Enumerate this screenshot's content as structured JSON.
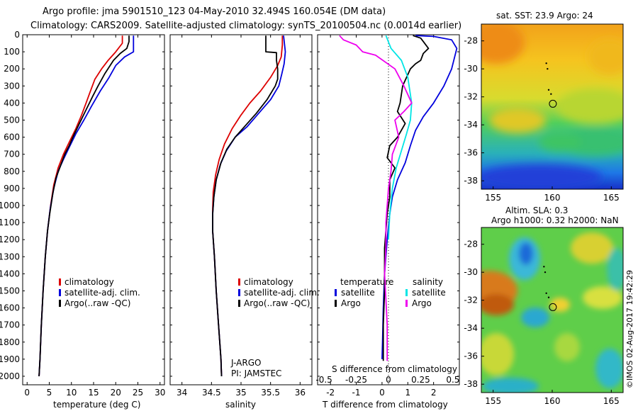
{
  "header": {
    "line1": "Argo profile: jma 5901510_123 04-May-2010 32.494S 160.054E (DM data)",
    "line2": "Climatology: CARS2009. Satellite-adjusted climatology: synTS_20100504.nc (0.0014d earlier)"
  },
  "credit": "©IMOS 02-Aug-2017 19:42:29",
  "colors": {
    "climatology": "#dd0000",
    "satellite": "#0000dd",
    "argo": "#000000",
    "cyan": "#00e5e5",
    "magenta": "#ee00ee"
  },
  "chart_data": [
    {
      "type": "line",
      "xlabel": "temperature (deg C)",
      "xlim": [
        -1,
        31
      ],
      "ylim": [
        0,
        2050
      ],
      "xticks": [
        0,
        5,
        10,
        15,
        20,
        25,
        30
      ],
      "yticks": [
        0,
        100,
        200,
        300,
        400,
        500,
        600,
        700,
        800,
        900,
        1000,
        1100,
        1200,
        1300,
        1400,
        1500,
        1600,
        1700,
        1800,
        1900,
        2000
      ],
      "legend": [
        "climatology",
        "satellite-adj. clim.",
        "Argo(..raw -QC)"
      ],
      "series": [
        {
          "name": "climatology",
          "color": "#dd0000",
          "points": [
            [
              21.5,
              5
            ],
            [
              21.5,
              50
            ],
            [
              20.0,
              100
            ],
            [
              18.3,
              150
            ],
            [
              16.8,
              200
            ],
            [
              15.3,
              260
            ],
            [
              14.3,
              330
            ],
            [
              13.3,
              400
            ],
            [
              12.3,
              470
            ],
            [
              11.0,
              550
            ],
            [
              9.5,
              630
            ],
            [
              8.2,
              700
            ],
            [
              7.0,
              780
            ],
            [
              6.0,
              880
            ],
            [
              5.3,
              1000
            ],
            [
              4.6,
              1150
            ],
            [
              4.1,
              1300
            ],
            [
              3.6,
              1500
            ],
            [
              3.2,
              1700
            ],
            [
              2.9,
              1900
            ],
            [
              2.7,
              2000
            ]
          ]
        },
        {
          "name": "satellite-adj. clim.",
          "color": "#0000dd",
          "points": [
            [
              24.0,
              5
            ],
            [
              24.0,
              100
            ],
            [
              22.0,
              130
            ],
            [
              20.0,
              180
            ],
            [
              18.5,
              250
            ],
            [
              16.5,
              330
            ],
            [
              14.5,
              420
            ],
            [
              12.8,
              500
            ],
            [
              11.0,
              580
            ],
            [
              9.5,
              660
            ],
            [
              8.2,
              730
            ],
            [
              7.0,
              800
            ],
            [
              6.0,
              900
            ],
            [
              5.2,
              1020
            ],
            [
              4.6,
              1150
            ],
            [
              4.1,
              1300
            ],
            [
              3.6,
              1500
            ],
            [
              3.2,
              1700
            ],
            [
              2.9,
              1900
            ],
            [
              2.7,
              2000
            ]
          ]
        },
        {
          "name": "Argo(..raw -QC)",
          "color": "#000000",
          "points": [
            [
              23.0,
              5
            ],
            [
              23.0,
              40
            ],
            [
              22.5,
              80
            ],
            [
              21.0,
              110
            ],
            [
              19.5,
              150
            ],
            [
              17.5,
              230
            ],
            [
              16.0,
              300
            ],
            [
              14.8,
              360
            ],
            [
              13.3,
              440
            ],
            [
              11.8,
              520
            ],
            [
              10.5,
              590
            ],
            [
              9.5,
              650
            ],
            [
              8.5,
              700
            ],
            [
              7.5,
              770
            ],
            [
              6.5,
              840
            ],
            [
              5.8,
              930
            ],
            [
              5.1,
              1050
            ],
            [
              4.6,
              1150
            ],
            [
              4.1,
              1300
            ],
            [
              3.6,
              1500
            ],
            [
              3.2,
              1700
            ],
            [
              2.9,
              1900
            ],
            [
              2.7,
              2000
            ]
          ]
        }
      ]
    },
    {
      "type": "line",
      "xlabel": "salinity",
      "xlim": [
        33.8,
        36.2
      ],
      "ylim": [
        0,
        2050
      ],
      "xticks": [
        34,
        34.5,
        35,
        35.5,
        36
      ],
      "legend": [
        "climatology",
        "satellite-adj. clim.",
        "Argo(..raw -QC)"
      ],
      "annotation": [
        "J-ARGO",
        "PI: JAMSTEC"
      ],
      "series": [
        {
          "name": "climatology",
          "color": "#dd0000",
          "points": [
            [
              35.7,
              5
            ],
            [
              35.7,
              60
            ],
            [
              35.68,
              130
            ],
            [
              35.62,
              180
            ],
            [
              35.5,
              250
            ],
            [
              35.33,
              330
            ],
            [
              35.15,
              400
            ],
            [
              35.0,
              470
            ],
            [
              34.85,
              550
            ],
            [
              34.72,
              640
            ],
            [
              34.63,
              730
            ],
            [
              34.57,
              820
            ],
            [
              34.53,
              920
            ],
            [
              34.52,
              1020
            ],
            [
              34.52,
              1150
            ],
            [
              34.55,
              1300
            ],
            [
              34.58,
              1500
            ],
            [
              34.62,
              1700
            ],
            [
              34.66,
              1900
            ],
            [
              34.67,
              2000
            ]
          ]
        },
        {
          "name": "satellite-adj. clim.",
          "color": "#0000dd",
          "points": [
            [
              35.72,
              5
            ],
            [
              35.75,
              100
            ],
            [
              35.73,
              170
            ],
            [
              35.69,
              230
            ],
            [
              35.64,
              300
            ],
            [
              35.5,
              380
            ],
            [
              35.3,
              460
            ],
            [
              35.1,
              540
            ],
            [
              34.9,
              600
            ],
            [
              34.75,
              680
            ],
            [
              34.65,
              760
            ],
            [
              34.58,
              850
            ],
            [
              34.54,
              950
            ],
            [
              34.52,
              1050
            ],
            [
              34.52,
              1150
            ],
            [
              34.55,
              1300
            ],
            [
              34.58,
              1500
            ],
            [
              34.62,
              1700
            ],
            [
              34.66,
              1900
            ],
            [
              34.67,
              2000
            ]
          ]
        },
        {
          "name": "Argo(..raw -QC)",
          "color": "#000000",
          "points": [
            [
              35.42,
              5
            ],
            [
              35.42,
              100
            ],
            [
              35.6,
              105
            ],
            [
              35.6,
              150
            ],
            [
              35.62,
              200
            ],
            [
              35.62,
              260
            ],
            [
              35.58,
              300
            ],
            [
              35.44,
              380
            ],
            [
              35.26,
              460
            ],
            [
              35.08,
              530
            ],
            [
              34.9,
              600
            ],
            [
              34.76,
              670
            ],
            [
              34.66,
              750
            ],
            [
              34.58,
              850
            ],
            [
              34.54,
              950
            ],
            [
              34.52,
              1050
            ],
            [
              34.52,
              1150
            ],
            [
              34.55,
              1300
            ],
            [
              34.58,
              1500
            ],
            [
              34.62,
              1700
            ],
            [
              34.66,
              1900
            ],
            [
              34.67,
              2000
            ]
          ]
        }
      ]
    },
    {
      "type": "line",
      "xlabel": "T difference from climatology",
      "xlabel2": "S difference from climatology",
      "xlim": [
        -2.5,
        3.0
      ],
      "ylim": [
        0,
        2050
      ],
      "xticks": [
        -2,
        -1,
        0,
        1,
        2
      ],
      "xticks2": [
        "-0.5",
        "-0.25",
        "0",
        "0.25",
        "0.5"
      ],
      "legend_temperature": [
        "temperature",
        "satellite",
        "Argo"
      ],
      "legend_salinity": [
        "salinity",
        "satellite",
        "Argo"
      ],
      "series": [
        {
          "name": "temperature satellite",
          "color": "#0000dd",
          "points": [
            [
              1.3,
              5
            ],
            [
              2.0,
              10
            ],
            [
              2.7,
              30
            ],
            [
              2.9,
              80
            ],
            [
              2.7,
              200
            ],
            [
              2.4,
              300
            ],
            [
              2.0,
              400
            ],
            [
              1.6,
              480
            ],
            [
              1.3,
              560
            ],
            [
              1.1,
              650
            ],
            [
              0.9,
              750
            ],
            [
              0.6,
              850
            ],
            [
              0.4,
              950
            ],
            [
              0.3,
              1050
            ],
            [
              0.2,
              1200
            ],
            [
              0.1,
              1400
            ],
            [
              0.05,
              1600
            ],
            [
              0.02,
              1800
            ],
            [
              0.0,
              1900
            ]
          ]
        },
        {
          "name": "temperature Argo",
          "color": "#000000",
          "points": [
            [
              1.2,
              5
            ],
            [
              1.5,
              20
            ],
            [
              1.6,
              40
            ],
            [
              1.8,
              80
            ],
            [
              1.6,
              110
            ],
            [
              1.5,
              150
            ],
            [
              1.3,
              170
            ],
            [
              1.1,
              200
            ],
            [
              0.8,
              300
            ],
            [
              0.7,
              400
            ],
            [
              0.6,
              450
            ],
            [
              0.9,
              520
            ],
            [
              0.6,
              600
            ],
            [
              0.3,
              650
            ],
            [
              0.2,
              720
            ],
            [
              0.5,
              780
            ],
            [
              0.3,
              850
            ],
            [
              0.3,
              950
            ],
            [
              0.2,
              1050
            ],
            [
              0.1,
              1250
            ],
            [
              0.1,
              1500
            ],
            [
              0.05,
              1700
            ],
            [
              0.05,
              1900
            ],
            [
              0.05,
              1910
            ]
          ]
        },
        {
          "name": "salinity satellite",
          "color": "#00e5e5",
          "points": [
            [
              -0.02,
              5
            ],
            [
              0.02,
              80
            ],
            [
              0.1,
              150
            ],
            [
              0.15,
              250
            ],
            [
              0.18,
              400
            ],
            [
              0.17,
              500
            ],
            [
              0.14,
              580
            ],
            [
              0.1,
              680
            ],
            [
              0.06,
              780
            ],
            [
              0.03,
              900
            ],
            [
              0.01,
              1050
            ],
            [
              0.0,
              1200
            ]
          ]
        },
        {
          "name": "salinity Argo",
          "color": "#ee00ee",
          "points": [
            [
              -0.38,
              5
            ],
            [
              -0.35,
              30
            ],
            [
              -0.25,
              60
            ],
            [
              -0.2,
              100
            ],
            [
              -0.1,
              120
            ],
            [
              0.05,
              200
            ],
            [
              0.12,
              300
            ],
            [
              0.18,
              400
            ],
            [
              0.12,
              450
            ],
            [
              0.05,
              500
            ],
            [
              0.08,
              600
            ],
            [
              0.03,
              700
            ],
            [
              0.02,
              800
            ],
            [
              0.0,
              900
            ],
            [
              -0.01,
              1000
            ],
            [
              -0.02,
              1100
            ],
            [
              -0.02,
              1250
            ],
            [
              -0.03,
              1400
            ],
            [
              -0.02,
              1550
            ],
            [
              -0.01,
              1700
            ],
            [
              -0.01,
              1900
            ],
            [
              -0.01,
              1910
            ]
          ]
        }
      ]
    },
    {
      "type": "heatmap",
      "title": "sat. SST: 23.9 Argo: 24",
      "xlim": [
        154,
        166
      ],
      "ylim": [
        -38.6,
        -26.8
      ],
      "xticks": [
        155,
        160,
        165
      ],
      "yticks": [
        -28,
        -30,
        -32,
        -34,
        -36,
        -38
      ],
      "marker": [
        160.054,
        -32.494
      ],
      "track": [
        [
          159.5,
          -29.6
        ],
        [
          159.6,
          -30.0
        ],
        [
          159.7,
          -31.5
        ],
        [
          159.9,
          -31.8
        ]
      ]
    },
    {
      "type": "heatmap",
      "title": "Altim. SLA: 0.3",
      "subtitle": "Argo h1000: 0.32 h2000: NaN",
      "xlim": [
        154,
        166
      ],
      "ylim": [
        -38.6,
        -26.8
      ],
      "xticks": [
        155,
        160,
        165
      ],
      "yticks": [
        -28,
        -30,
        -32,
        -34,
        -36,
        -38
      ],
      "marker": [
        160.054,
        -32.494
      ],
      "track": [
        [
          159.3,
          -29.6
        ],
        [
          159.4,
          -30.0
        ],
        [
          159.5,
          -31.5
        ],
        [
          159.7,
          -31.8
        ]
      ]
    }
  ]
}
